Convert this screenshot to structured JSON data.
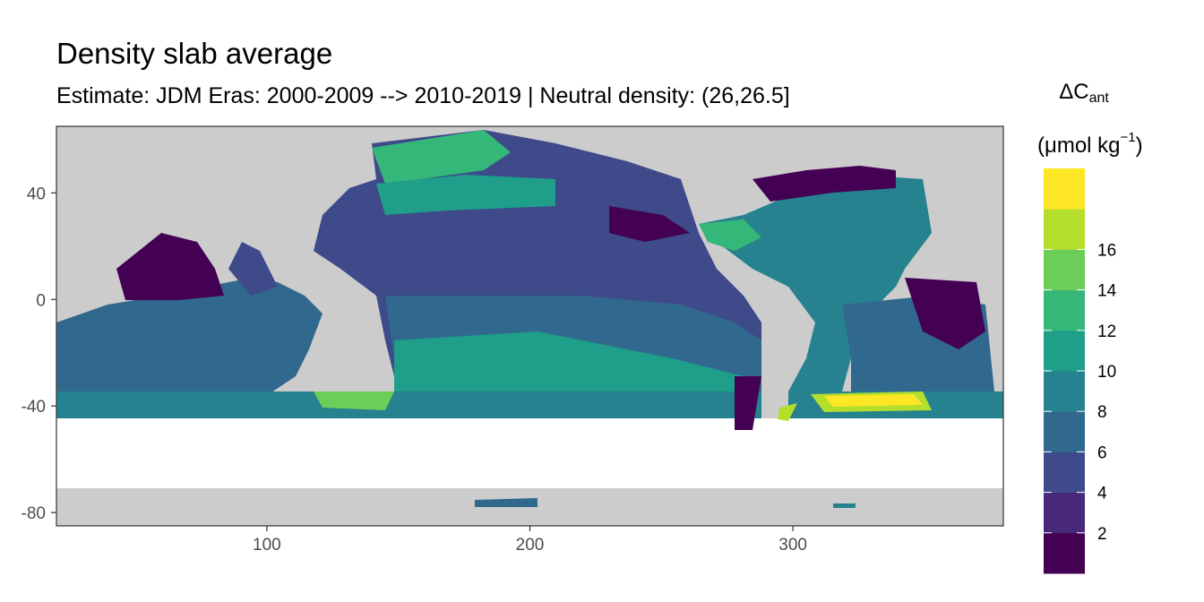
{
  "chart_data": {
    "type": "heatmap",
    "title": "Density slab average",
    "subtitle": "Estimate: JDM Eras: 2000-2009 --> 2010-2019 | Neutral density: (26,26.5]",
    "legend": {
      "title_main": "ΔC",
      "title_sub": "ant",
      "units_prefix": "(μmol kg",
      "units_sup": "−1",
      "units_suffix": ")",
      "breaks": [
        2,
        4,
        6,
        8,
        10,
        12,
        14,
        16
      ],
      "colors": [
        "#440154",
        "#482878",
        "#3E4A89",
        "#31688E",
        "#26828E",
        "#1F9E89",
        "#35B779",
        "#6DCD59",
        "#B4DE2C",
        "#FDE725"
      ],
      "placement": "right"
    },
    "x_axis": {
      "label": "",
      "range": [
        20,
        380
      ],
      "ticks": [
        100,
        200,
        300
      ]
    },
    "y_axis": {
      "label": "",
      "range": [
        -85,
        65
      ],
      "ticks": [
        40,
        0,
        -40,
        -80
      ]
    },
    "colors": {
      "land": "#CCCCCC",
      "panel_border": "#333333",
      "grid": "#EBEBEB"
    }
  }
}
